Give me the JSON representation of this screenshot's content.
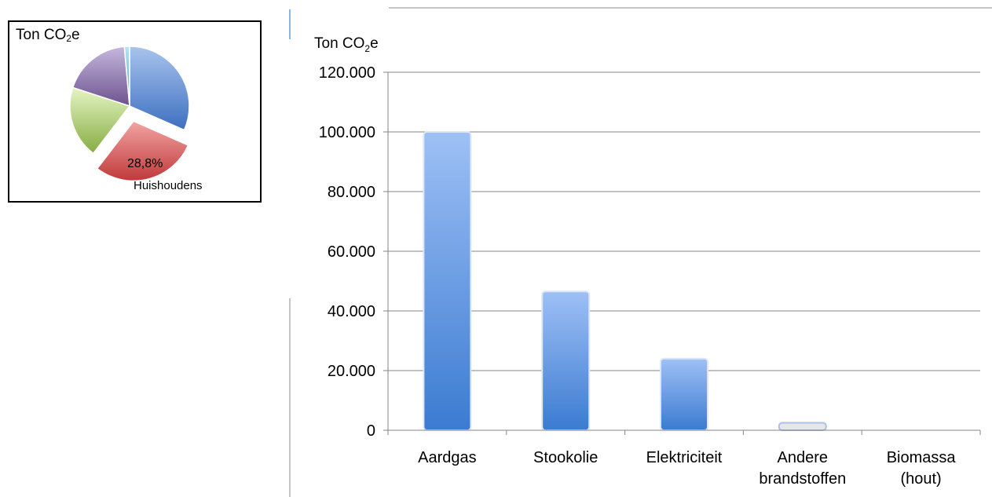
{
  "chart_data": [
    {
      "type": "pie",
      "title": {
        "prefix": "Ton CO",
        "sub": "2",
        "suffix": "e"
      },
      "slices": [
        {
          "value": 31.6,
          "color": "#4f81bd",
          "exploded": false
        },
        {
          "value": 28.8,
          "color": "#c0504d",
          "exploded": true
        },
        {
          "value": 19.6,
          "color": "#9bbb59",
          "exploded": false
        },
        {
          "value": 18.6,
          "color": "#8064a2",
          "exploded": false
        },
        {
          "value": 1.4,
          "color": "#4bacc6",
          "exploded": false
        }
      ],
      "annotation": {
        "percent": "28,8%",
        "label": "Huishoudens"
      }
    },
    {
      "type": "bar",
      "ylabel": {
        "prefix": "Ton CO",
        "sub": "2",
        "suffix": "e"
      },
      "categories": [
        [
          "Aardgas"
        ],
        [
          "Stookolie"
        ],
        [
          "Elektriciteit"
        ],
        [
          "Andere",
          "brandstoffen"
        ],
        [
          "Biomassa",
          "(hout)"
        ]
      ],
      "values": [
        100000,
        46500,
        24000,
        2500,
        0
      ],
      "ylim": [
        0,
        120000
      ],
      "yticks": [
        "0",
        "20.000",
        "40.000",
        "60.000",
        "80.000",
        "100.000",
        "120.000"
      ],
      "grid": true,
      "bar_color": "#4f81bd"
    }
  ]
}
